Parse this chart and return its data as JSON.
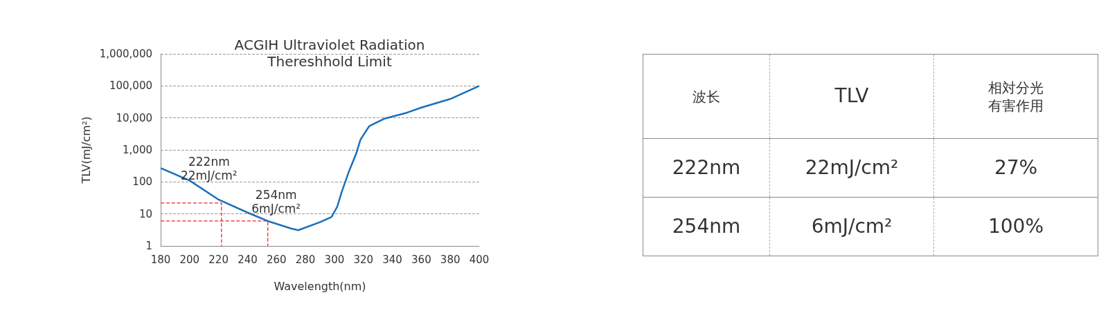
{
  "chart_data": [
    {
      "type": "line",
      "title": "ACGIH Ultraviolet Radiation\nThereshhold Limit",
      "xlabel": "Wavelength(nm)",
      "ylabel": "TLV(mJ/cm²)",
      "x": [
        180,
        200,
        220,
        240,
        254,
        270,
        275,
        290,
        298,
        302,
        305,
        310,
        315,
        318,
        320,
        324,
        330,
        335,
        340,
        350,
        360,
        380,
        400
      ],
      "series": [
        {
          "color": "#1a6fba",
          "values": [
            270,
            110,
            28,
            11,
            6,
            3.5,
            3.1,
            5.5,
            8,
            17,
            48,
            210,
            760,
            2100,
            2900,
            5500,
            7500,
            9600,
            11000,
            14500,
            21000,
            39000,
            100000
          ]
        },
        {
          "color": "#e8262b",
          "line_style": "dashed",
          "x": [
            180,
            222,
            222
          ],
          "values": [
            22,
            22,
            1
          ]
        },
        {
          "color": "#e8262b",
          "line_style": "dashed",
          "x": [
            180,
            254,
            254
          ],
          "values": [
            6,
            6,
            1
          ]
        }
      ],
      "xlim": [
        180,
        400
      ],
      "xticks": [
        180,
        200,
        220,
        240,
        260,
        280,
        300,
        320,
        340,
        360,
        380,
        400
      ],
      "ylim": [
        1,
        1000000
      ],
      "yticks": [
        1,
        10,
        100,
        {
          "value": 1000,
          "label": "1,000"
        },
        {
          "value": 10000,
          "label": "10,000"
        },
        {
          "value": 100000,
          "label": "100,000"
        },
        {
          "value": 1000000,
          "label": "1,000,000"
        }
      ],
      "log": "y",
      "grid": "y",
      "marker": "none",
      "line_style": "solid",
      "annotations": [
        {
          "text": "222nm\n22mJ/cm²",
          "x": 222,
          "y": 22
        },
        {
          "text": "254nm\n6mJ/cm²",
          "x": 254,
          "y": 6
        }
      ]
    },
    {
      "type": "other",
      "categories": [
        "波长",
        "TLV",
        "相対分光有害作用"
      ],
      "cell_labels": [
        [
          "222nm",
          "22mJ/cm²",
          "27%"
        ],
        [
          "254nm",
          "6mJ/cm²",
          "100%"
        ]
      ]
    }
  ]
}
